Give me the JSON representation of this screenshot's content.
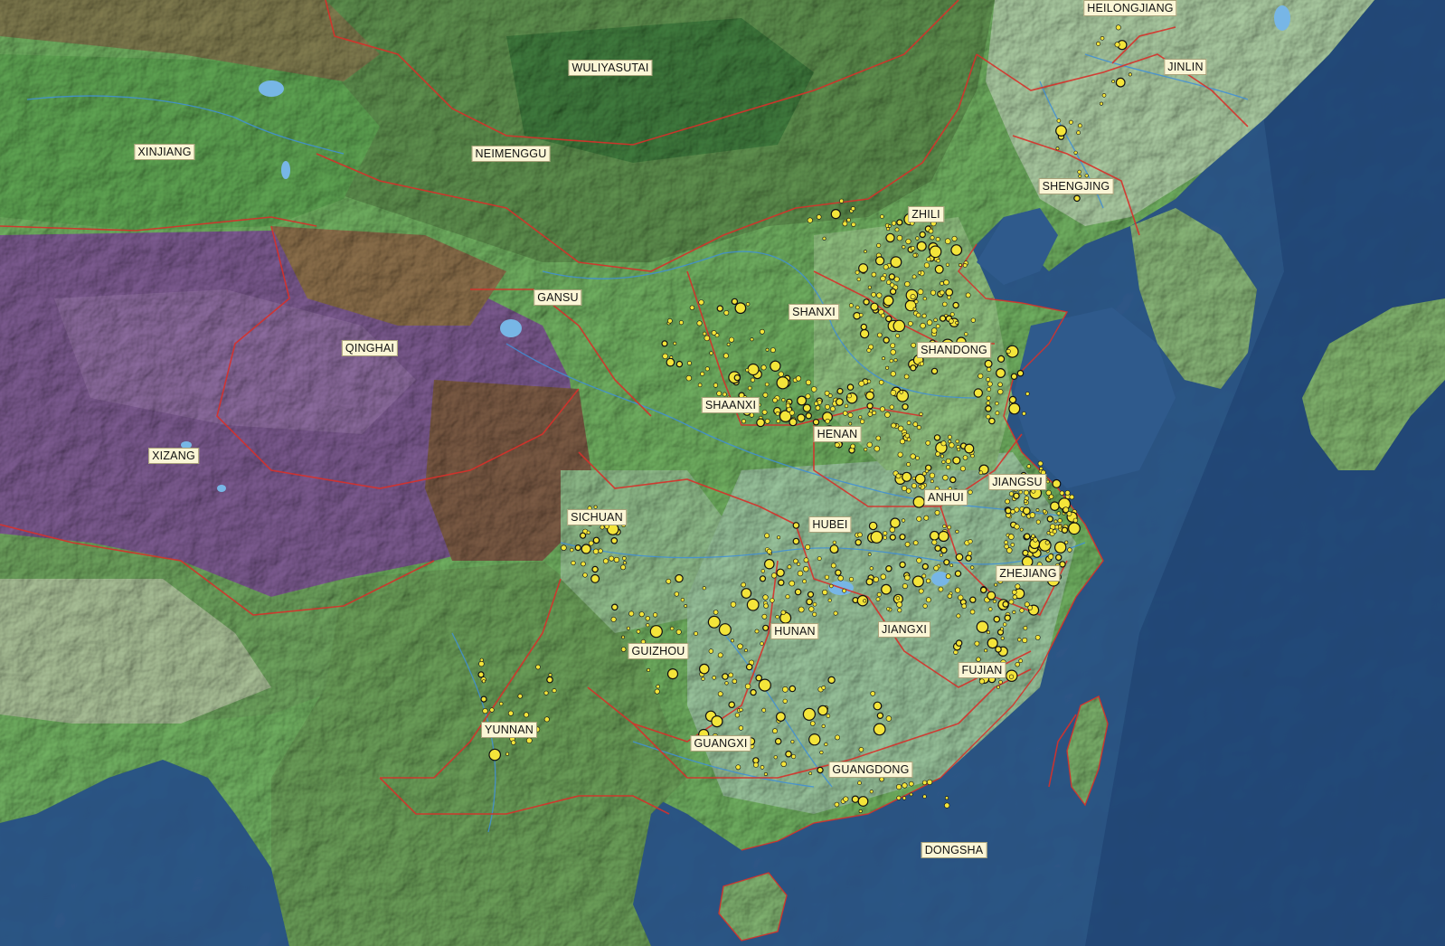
{
  "map": {
    "colors": {
      "ocean": "#2f5a8c",
      "deep_ocean": "#1f4677",
      "lowland": "#a9c6a0",
      "plain_green": "#6eae62",
      "steppe": "#5d9a54",
      "highland_brown": "#7c6a4a",
      "plateau_purple": "#7b5b8f",
      "border": "#d8302a",
      "river": "#3f8fd8",
      "site_fill": "#f4e53a",
      "site_stroke": "#111111",
      "label_bg": "#fbf6d6"
    },
    "province_labels": [
      {
        "id": "heilongjiang",
        "text": "HEILONGJIANG"
      },
      {
        "id": "jinlin",
        "text": "JINLIN"
      },
      {
        "id": "wuliyasutai",
        "text": "WULIYASUTAI"
      },
      {
        "id": "xinjiang",
        "text": "XINJIANG"
      },
      {
        "id": "neimenggu",
        "text": "NEIMENGGU"
      },
      {
        "id": "shengjing",
        "text": "SHENGJING"
      },
      {
        "id": "zhili",
        "text": "ZHILI"
      },
      {
        "id": "gansu",
        "text": "GANSU"
      },
      {
        "id": "shanxi",
        "text": "SHANXI"
      },
      {
        "id": "qinghai",
        "text": "QINGHAI"
      },
      {
        "id": "shandong",
        "text": "SHANDONG"
      },
      {
        "id": "shaanxi",
        "text": "SHAANXI"
      },
      {
        "id": "henan",
        "text": "HENAN"
      },
      {
        "id": "xizang",
        "text": "XIZANG"
      },
      {
        "id": "jiangsu",
        "text": "JIANGSU"
      },
      {
        "id": "anhui",
        "text": "ANHUI"
      },
      {
        "id": "sichuan",
        "text": "SICHUAN"
      },
      {
        "id": "hubei",
        "text": "HUBEI"
      },
      {
        "id": "zhejiang",
        "text": "ZHEJIANG"
      },
      {
        "id": "hunan",
        "text": "HUNAN"
      },
      {
        "id": "jiangxi",
        "text": "JIANGXI"
      },
      {
        "id": "guizhou",
        "text": "GUIZHOU"
      },
      {
        "id": "fujian",
        "text": "FUJIAN"
      },
      {
        "id": "yunnan",
        "text": "YUNNAN"
      },
      {
        "id": "guangxi",
        "text": "GUANGXI"
      },
      {
        "id": "guangdong",
        "text": "GUANGDONG"
      },
      {
        "id": "dongsha",
        "text": "DONGSHA"
      }
    ]
  }
}
